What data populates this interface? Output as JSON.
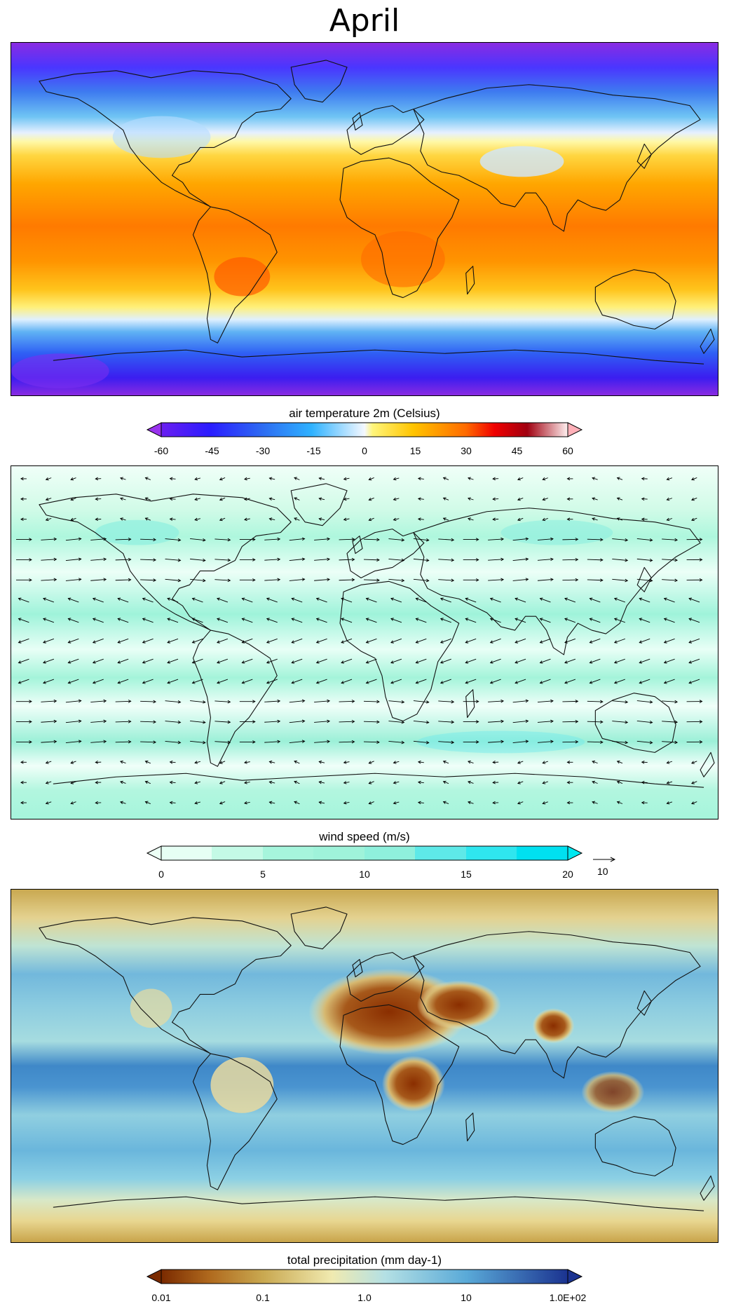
{
  "title": "April",
  "panels": [
    {
      "colorbar_title": "air temperature 2m (Celsius)",
      "ticks": [
        "-60",
        "-45",
        "-30",
        "-15",
        "0",
        "15",
        "30",
        "45",
        "60"
      ],
      "range": [
        -60,
        60
      ],
      "extend": "both"
    },
    {
      "colorbar_title": "wind speed (m/s)",
      "ticks": [
        "0",
        "5",
        "10",
        "15",
        "20"
      ],
      "range": [
        0,
        20
      ],
      "extend": "both",
      "reference_vector_label": "10"
    },
    {
      "colorbar_title": "total precipitation (mm day-1)",
      "ticks": [
        "0.01",
        "0.1",
        "1.0",
        "10",
        "1.0E+02"
      ],
      "range": [
        0.01,
        100
      ],
      "scale": "log",
      "extend": "both"
    }
  ],
  "colors": {
    "temp_min_extend": "#9933ee",
    "temp_max_extend": "#ffb0b8",
    "wind_min_extend": "#ecfff5",
    "wind_max_extend": "#00e8f0",
    "precip_min_extend": "#7a2a00",
    "precip_max_extend": "#1b3390"
  }
}
